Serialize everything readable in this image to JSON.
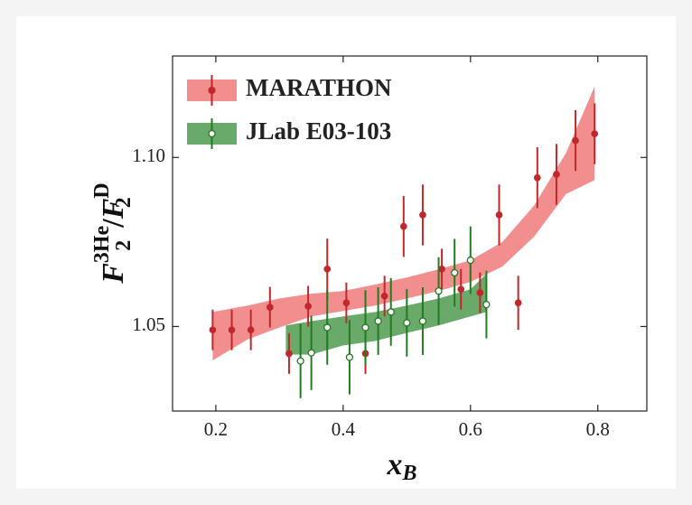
{
  "chart_data": {
    "type": "errorbar-band",
    "xlabel": {
      "base": "x",
      "sub": "B"
    },
    "ylabel": {
      "numerator": {
        "base": "F",
        "sub": "2",
        "sup": "3He"
      },
      "separator": "/",
      "denominator": {
        "base": "F",
        "sub": "2",
        "sup": "D"
      }
    },
    "xlim": [
      0.132,
      0.877
    ],
    "ylim": [
      1.025,
      1.13
    ],
    "xticks": [
      0.2,
      0.4,
      0.6,
      0.8
    ],
    "yticks": [
      1.05,
      {
        "value": 1.1,
        "label": "1.10"
      }
    ],
    "legend": "upper left",
    "series": [
      {
        "name": "MARATHON",
        "color": "#c0282b",
        "band_color": "#f07a7a",
        "marker": "filled",
        "x": [
          0.195,
          0.225,
          0.255,
          0.285,
          0.315,
          0.345,
          0.375,
          0.405,
          0.435,
          0.465,
          0.495,
          0.525,
          0.555,
          0.585,
          0.615,
          0.645,
          0.675,
          0.705,
          0.735,
          0.765,
          0.795
        ],
        "values": [
          1.049,
          1.049,
          1.049,
          1.0557,
          1.042,
          1.056,
          1.067,
          1.057,
          1.042,
          1.059,
          1.0796,
          1.083,
          1.067,
          1.061,
          1.06,
          1.083,
          1.057,
          1.094,
          1.095,
          1.105,
          1.107
        ],
        "errors": [
          0.006,
          0.006,
          0.006,
          0.006,
          0.006,
          0.006,
          0.009,
          0.006,
          0.006,
          0.006,
          0.009,
          0.009,
          0.006,
          0.006,
          0.006,
          0.009,
          0.008,
          0.009,
          0.009,
          0.009,
          0.009
        ],
        "band": {
          "x": [
            0.195,
            0.25,
            0.3,
            0.35,
            0.4,
            0.45,
            0.5,
            0.55,
            0.6,
            0.65,
            0.7,
            0.75,
            0.795
          ],
          "lower": [
            1.04,
            1.0462,
            1.0497,
            1.053,
            1.0546,
            1.0562,
            1.0583,
            1.0605,
            1.0632,
            1.0677,
            1.0766,
            1.0892,
            1.0933
          ],
          "upper": [
            1.0543,
            1.0562,
            1.0583,
            1.0597,
            1.0605,
            1.0624,
            1.0645,
            1.0669,
            1.0696,
            1.075,
            1.0858,
            1.1013,
            1.121
          ]
        }
      },
      {
        "name": "JLab E03-103",
        "color": "#237a23",
        "band_color": "#4f9a4f",
        "marker": "open",
        "x": [
          0.333,
          0.35,
          0.375,
          0.41,
          0.435,
          0.455,
          0.475,
          0.5,
          0.525,
          0.55,
          0.575,
          0.6,
          0.625
        ],
        "values": [
          1.0398,
          1.0422,
          1.0497,
          1.0409,
          1.0497,
          1.0516,
          1.0543,
          1.0511,
          1.0516,
          1.0605,
          1.0659,
          1.0696,
          1.0565
        ],
        "errors": [
          0.011,
          0.011,
          0.011,
          0.011,
          0.011,
          0.01,
          0.01,
          0.01,
          0.01,
          0.01,
          0.01,
          0.01,
          0.01
        ],
        "band": {
          "x": [
            0.31,
            0.35,
            0.4,
            0.45,
            0.5,
            0.55,
            0.6,
            0.625
          ],
          "lower": [
            1.0417,
            1.0417,
            1.0444,
            1.0457,
            1.0481,
            1.0503,
            1.053,
            1.0543
          ],
          "upper": [
            1.0503,
            1.0516,
            1.053,
            1.0543,
            1.0562,
            1.0583,
            1.061,
            1.0656
          ]
        }
      }
    ]
  }
}
